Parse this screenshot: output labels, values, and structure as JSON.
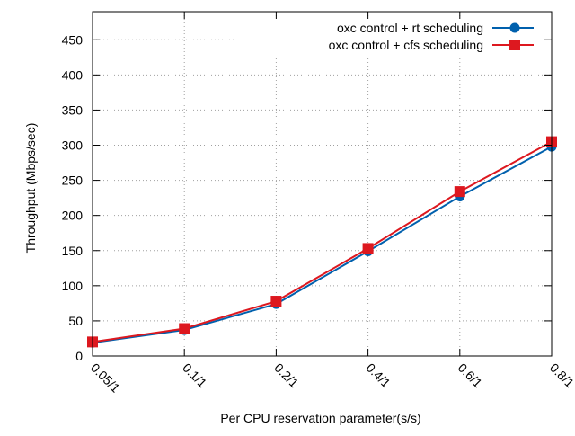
{
  "chart_data": {
    "type": "line",
    "title": "",
    "xlabel": "Per CPU reservation parameter(s/s)",
    "ylabel": "Throughput (Mbps/sec)",
    "categories": [
      "0.05/1",
      "0.1/1",
      "0.2/1",
      "0.4/1",
      "0.6/1",
      "0.8/1"
    ],
    "ylim": [
      0,
      490
    ],
    "yticks": [
      0,
      50,
      100,
      150,
      200,
      250,
      300,
      350,
      400,
      450
    ],
    "ytick_labels": [
      "0",
      "50",
      "100",
      "150",
      "200",
      "250",
      "300",
      "350",
      "400",
      "450"
    ],
    "grid": true,
    "legend_position": "top-right",
    "series": [
      {
        "name": "oxc control + rt scheduling",
        "values": [
          19,
          37,
          74,
          149,
          227,
          298
        ],
        "color": "#0060ad",
        "marker": "circle"
      },
      {
        "name": "oxc control + cfs scheduling",
        "values": [
          20,
          39,
          78,
          153,
          234,
          305
        ],
        "color": "#dd181f",
        "marker": "square"
      }
    ]
  }
}
